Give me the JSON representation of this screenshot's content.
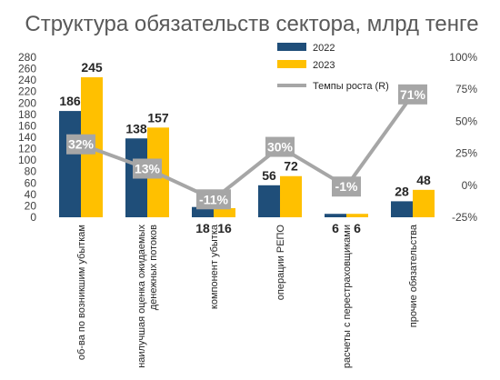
{
  "chart_data": {
    "type": "bar",
    "title": "Структура обязательств сектора, млрд тенге",
    "categories": [
      [
        "об-ва по возникшим убыткам"
      ],
      [
        "наилучшая оценка ожидаемых",
        "денежных потоков"
      ],
      [
        "компонент убытка"
      ],
      [
        "операции РЕПО"
      ],
      [
        "расчеты с перестраховщиками"
      ],
      [
        "прочие обязательства"
      ]
    ],
    "series": [
      {
        "name": "2022",
        "values": [
          186,
          138,
          18,
          56,
          6,
          28
        ],
        "labels": [
          "186",
          "138",
          "18",
          "56",
          "6",
          "28"
        ],
        "color": "#1F4E79"
      },
      {
        "name": "2023",
        "values": [
          245,
          157,
          16,
          72,
          6,
          48
        ],
        "labels": [
          "245",
          "157",
          "16",
          "72",
          "6",
          "48"
        ],
        "color": "#FFC000"
      }
    ],
    "line": {
      "name": "Темпы роста (R)",
      "values": [
        32,
        13,
        -11,
        30,
        -1,
        71
      ],
      "labels": [
        "32%",
        "13%",
        "-11%",
        "30%",
        "-1%",
        "71%"
      ],
      "color": "#A6A6A6",
      "axis": "right"
    },
    "ylim": [
      0,
      280
    ],
    "yticks": [
      "0",
      "20",
      "40",
      "60",
      "80",
      "100",
      "120",
      "140",
      "160",
      "180",
      "200",
      "220",
      "240",
      "260",
      "280"
    ],
    "y2lim": [
      -25,
      100
    ],
    "y2ticks": [
      "-25%",
      "0%",
      "25%",
      "50%",
      "75%",
      "100%"
    ],
    "legend_position": "top-center",
    "grid": false
  }
}
